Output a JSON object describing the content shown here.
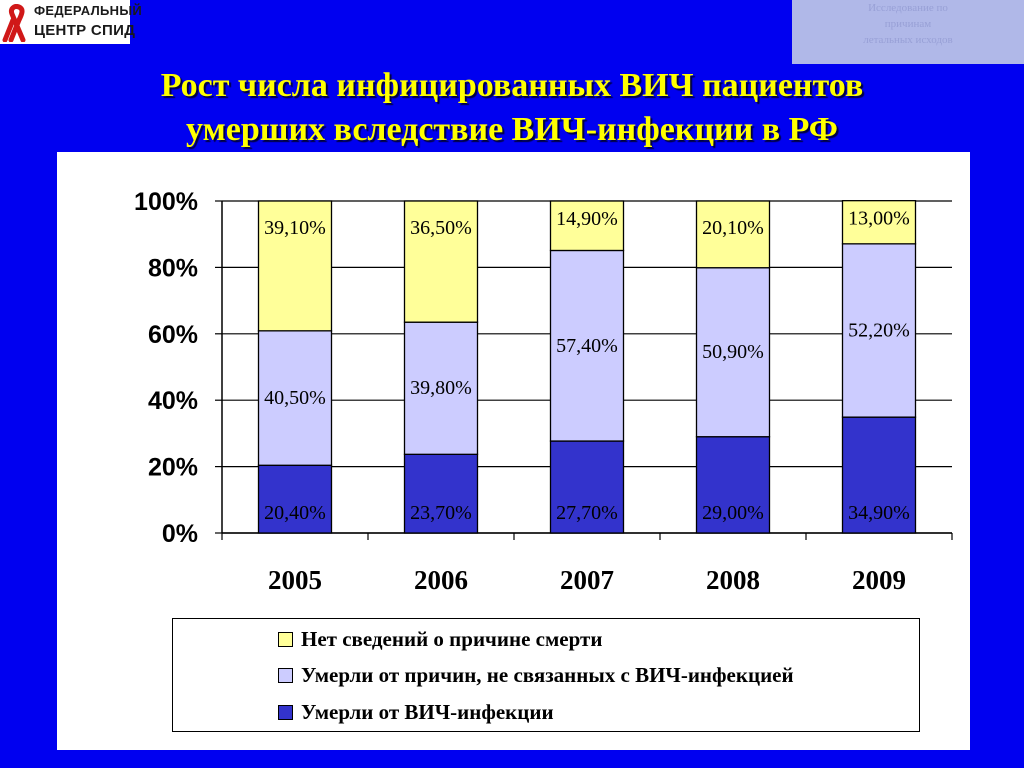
{
  "header": {
    "logo_line1": "ФЕДЕРАЛЬНЫЙ",
    "logo_line2": "ЦЕНТР СПИД",
    "study_note": [
      "Исследование по",
      "причинам",
      "летальных исходов"
    ],
    "title_line1": "Рост числа инфицированных ВИЧ пациентов",
    "title_line2": "умерших вследствие  ВИЧ-инфекции в РФ"
  },
  "colors": {
    "background": "#0000f0",
    "title": "#ffff00",
    "series_hiv": "#3333cc",
    "series_other": "#ccccff",
    "series_unknown": "#ffff99"
  },
  "chart_data": {
    "type": "bar",
    "stacked": true,
    "categories": [
      "2005",
      "2006",
      "2007",
      "2008",
      "2009"
    ],
    "y_ticks": [
      "0%",
      "20%",
      "40%",
      "60%",
      "80%",
      "100%"
    ],
    "ylim": [
      0,
      100
    ],
    "grid": true,
    "legend_position": "bottom",
    "series": [
      {
        "name": "Умерли от ВИЧ-инфекции",
        "values": [
          20.4,
          23.7,
          27.7,
          29.0,
          34.9
        ],
        "labels": [
          "20,40%",
          "23,70%",
          "27,70%",
          "29,00%",
          "34,90%"
        ],
        "color": "#3333cc"
      },
      {
        "name": "Умерли от причин, не связанных с ВИЧ-инфекцией",
        "values": [
          40.5,
          39.8,
          57.4,
          50.9,
          52.2
        ],
        "labels": [
          "40,50%",
          "39,80%",
          "57,40%",
          "50,90%",
          "52,20%"
        ],
        "color": "#ccccff"
      },
      {
        "name": "Нет сведений о причине смерти",
        "values": [
          39.1,
          36.5,
          14.9,
          20.1,
          13.0
        ],
        "labels": [
          "39,10%",
          "36,50%",
          "14,90%",
          "20,10%",
          "13,00%"
        ],
        "color": "#ffff99"
      }
    ],
    "legend_order": [
      2,
      1,
      0
    ]
  }
}
